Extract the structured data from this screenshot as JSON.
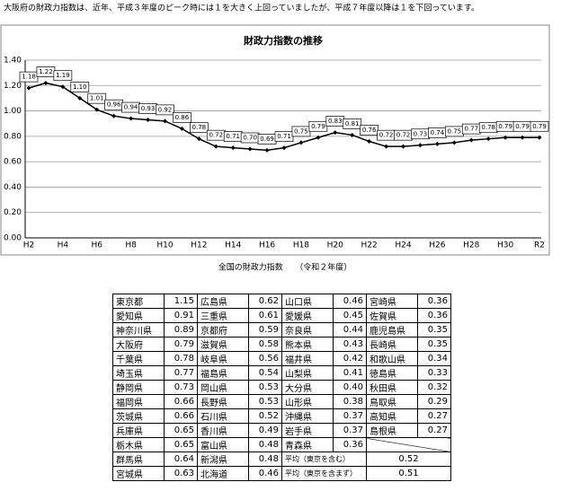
{
  "intro": "大阪府の財政力指数は、近年、平成３年度のピーク時には１を大きく上回っていましたが、平成７年度以降は１を下回っています。",
  "chart_data": {
    "type": "line",
    "title": "財政力指数の推移",
    "categories": [
      "H2",
      null,
      "H4",
      null,
      "H6",
      null,
      "H8",
      null,
      "H10",
      null,
      "H12",
      null,
      "H14",
      null,
      "H16",
      null,
      "H18",
      null,
      "H20",
      null,
      "H22",
      null,
      "H24",
      null,
      "H26",
      null,
      "H28",
      null,
      "H30",
      null,
      "R2"
    ],
    "series": [
      {
        "name": "財政力指数",
        "color": "#000000",
        "values": [
          1.18,
          1.22,
          1.19,
          1.1,
          1.01,
          0.96,
          0.94,
          0.93,
          0.92,
          0.86,
          0.78,
          0.72,
          0.71,
          0.7,
          0.69,
          0.71,
          0.75,
          0.79,
          0.83,
          0.81,
          0.76,
          0.72,
          0.72,
          0.73,
          0.74,
          0.75,
          0.77,
          0.78,
          0.79,
          0.79,
          0.79
        ],
        "value_labels": [
          "1.18",
          "1.22",
          "1.19",
          "1.10",
          "1.01",
          "0.96",
          "0.94",
          "0.93",
          "0.92",
          "0.86",
          "0.78",
          "0.72",
          "0.71",
          "0.70",
          "0.69",
          "0.71",
          "0.75",
          "0.79",
          "0.83",
          "0.81",
          "0.76",
          "0.72",
          "0.72",
          "0.73",
          "0.74",
          "0.75",
          "0.77",
          "0.78",
          "0.79",
          "0.79",
          "0.79"
        ]
      }
    ],
    "ylim": [
      0,
      1.4
    ],
    "yticks": [
      {
        "value": 0,
        "label": "0.00"
      },
      {
        "value": 0.2,
        "label": "0.20"
      },
      {
        "value": 0.4,
        "label": "0.40"
      },
      {
        "value": 0.6,
        "label": "0.60"
      },
      {
        "value": 0.8,
        "label": "0.80"
      },
      {
        "value": 1.0,
        "label": "1.00"
      },
      {
        "value": 1.2,
        "label": "1.20"
      },
      {
        "value": 1.4,
        "label": "1.40"
      }
    ],
    "grid": true
  },
  "table": {
    "caption": "全国の財政力指数　　（令和２年度）",
    "rows": [
      [
        "東京都",
        "1.15",
        "広島県",
        "0.62",
        "山口県",
        "0.46",
        "宮崎県",
        "0.36"
      ],
      [
        "愛知県",
        "0.91",
        "三重県",
        "0.61",
        "愛媛県",
        "0.45",
        "佐賀県",
        "0.36"
      ],
      [
        "神奈川県",
        "0.89",
        "京都府",
        "0.59",
        "奈良県",
        "0.44",
        "鹿児島県",
        "0.35"
      ],
      [
        "大阪府",
        "0.79",
        "滋賀県",
        "0.58",
        "熊本県",
        "0.43",
        "長崎県",
        "0.35"
      ],
      [
        "千葉県",
        "0.78",
        "岐阜県",
        "0.56",
        "福井県",
        "0.42",
        "和歌山県",
        "0.34"
      ],
      [
        "埼玉県",
        "0.77",
        "福島県",
        "0.54",
        "山梨県",
        "0.41",
        "徳島県",
        "0.33"
      ],
      [
        "静岡県",
        "0.73",
        "岡山県",
        "0.53",
        "大分県",
        "0.40",
        "秋田県",
        "0.32"
      ],
      [
        "福岡県",
        "0.66",
        "長野県",
        "0.53",
        "山形県",
        "0.38",
        "鳥取県",
        "0.29"
      ],
      [
        "茨城県",
        "0.66",
        "石川県",
        "0.52",
        "沖縄県",
        "0.37",
        "高知県",
        "0.27"
      ],
      [
        "兵庫県",
        "0.65",
        "香川県",
        "0.49",
        "岩手県",
        "0.37",
        "島根県",
        "0.27"
      ],
      [
        "栃木県",
        "0.65",
        "富山県",
        "0.48",
        "青森県",
        "0.36"
      ]
    ],
    "average_rows": [
      [
        "群馬県",
        "0.64",
        "新潟県",
        "0.48",
        "平均（東京を含む）",
        "0.52"
      ],
      [
        "宮城県",
        "0.63",
        "北海道",
        "0.46",
        "平均（東京を含まず）",
        "0.51"
      ]
    ]
  }
}
